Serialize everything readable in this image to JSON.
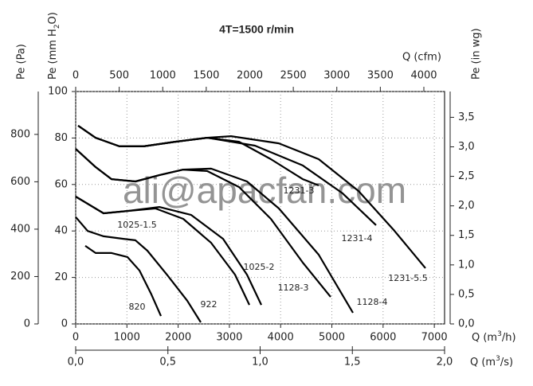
{
  "chart_data": {
    "type": "line",
    "title": "4T=1500 r/min",
    "watermark": "ali@apacfan.com",
    "grid": true,
    "xlim": [
      0,
      7200
    ],
    "xticks": [
      0,
      1000,
      2000,
      3000,
      4000,
      5000,
      6000,
      7000
    ],
    "x_label": [
      "Q (m",
      "3",
      "/h)"
    ],
    "x2lim": [
      0,
      2
    ],
    "x2ticks": [
      {
        "value": 0,
        "label": "0,0"
      },
      {
        "value": 0.5,
        "label": "0,5"
      },
      {
        "value": 1,
        "label": "1,0"
      },
      {
        "value": 1.5,
        "label": "1,5"
      },
      {
        "value": 2,
        "label": "2,0"
      }
    ],
    "x2_label": [
      "Q (m",
      "3",
      "/s)"
    ],
    "x3lim": [
      0,
      4238
    ],
    "x3ticks": [
      0,
      500,
      1000,
      1500,
      2000,
      2500,
      3000,
      3500,
      4000
    ],
    "x3_label": "Q (cfm)",
    "ylim": [
      0,
      100
    ],
    "yticks": [
      0,
      20,
      40,
      60,
      80,
      100
    ],
    "y_label": [
      "Pe (mm H",
      "2",
      "O)"
    ],
    "y2lim": [
      0,
      981
    ],
    "y2ticks": [
      0,
      200,
      400,
      600,
      800
    ],
    "y2_label": "Pe (Pa)",
    "y3lim": [
      0,
      3.937
    ],
    "y3ticks": [
      {
        "value": 0,
        "label": "0,0"
      },
      {
        "value": 0.5,
        "label": "0,5"
      },
      {
        "value": 1,
        "label": "1,0"
      },
      {
        "value": 1.5,
        "label": "1,5"
      },
      {
        "value": 2,
        "label": "2,0"
      },
      {
        "value": 2.5,
        "label": "2,5"
      },
      {
        "value": 3,
        "label": "3,0"
      },
      {
        "value": 3.5,
        "label": "3,5"
      }
    ],
    "y3_label": "Pe (in wg)",
    "series": [
      {
        "name": "820",
        "color": "#000000",
        "x": [
          187,
          389,
          700,
          1010,
          1244,
          1477,
          1664
        ],
        "values": [
          33.6,
          30.5,
          30.5,
          28.8,
          23,
          12.7,
          3.4
        ]
      },
      {
        "name": "922",
        "color": "#000000",
        "x": [
          0,
          233,
          544,
          933,
          1166,
          1400,
          1788,
          2177,
          2442
        ],
        "values": [
          46,
          40,
          37.7,
          36.6,
          36,
          31.5,
          21,
          10,
          0.7
        ]
      },
      {
        "name": "1025-1.5",
        "color": "#000000",
        "x": [
          0,
          544,
          1010,
          1555,
          2099,
          2644,
          3110,
          3390
        ],
        "values": [
          54.8,
          47.6,
          48.6,
          49.7,
          45.2,
          34.9,
          21.2,
          8.2
        ]
      },
      {
        "name": "1025-2",
        "color": "#000000",
        "x": [
          0,
          544,
          1010,
          1633,
          2255,
          2877,
          3344,
          3624
        ],
        "values": [
          54.8,
          47.6,
          48.6,
          50.3,
          46.9,
          36.6,
          21.2,
          8.2
        ]
      },
      {
        "name": "1128-3",
        "color": "#000000",
        "x": [
          0,
          389,
          700,
          1166,
          1632,
          2099,
          2566,
          3188,
          3810,
          4432,
          4977
        ],
        "values": [
          75.3,
          67.5,
          62.3,
          61.3,
          64,
          66.4,
          65.8,
          58.9,
          45.2,
          26.4,
          11.6
        ]
      },
      {
        "name": "1128-4",
        "color": "#000000",
        "x": [
          0,
          389,
          700,
          1166,
          1632,
          2099,
          2644,
          3344,
          3966,
          4743,
          5412
        ],
        "values": [
          75.3,
          67.5,
          62.3,
          61.3,
          64,
          66.4,
          66.8,
          61.3,
          49.7,
          29.8,
          4.8
        ]
      },
      {
        "name": "1231-3",
        "color": "#000000",
        "x": [
          47,
          389,
          855,
          1322,
          1944,
          2566,
          3188,
          3810,
          4432,
          4743
        ],
        "values": [
          85.3,
          80.1,
          76.4,
          76.4,
          78.4,
          80.1,
          78.4,
          70.9,
          62.3,
          59.6
        ]
      },
      {
        "name": "1231-4",
        "color": "#000000",
        "x": [
          47,
          389,
          855,
          1322,
          1944,
          2566,
          3499,
          4432,
          5210,
          5863
        ],
        "values": [
          85.3,
          80.1,
          76.4,
          76.4,
          78.4,
          80.1,
          76.7,
          68.2,
          56.2,
          42.5
        ]
      },
      {
        "name": "1231-5.5",
        "color": "#000000",
        "x": [
          47,
          389,
          855,
          1322,
          1944,
          2566,
          3033,
          3966,
          4743,
          5521,
          6221,
          6827
        ],
        "values": [
          85.3,
          80.1,
          76.4,
          76.4,
          78.4,
          80.1,
          80.8,
          77.7,
          70.9,
          57.2,
          40.1,
          24
        ]
      }
    ]
  }
}
